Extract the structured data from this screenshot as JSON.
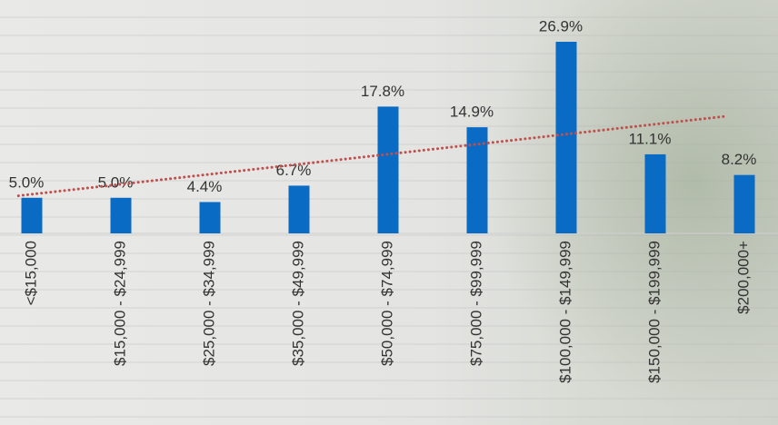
{
  "chart_data": {
    "type": "bar",
    "categories": [
      "<$15,000",
      "$15,000 - $24,999",
      "$25,000 - $34,999",
      "$35,000 - $49,999",
      "$50,000 - $74,999",
      "$75,000 - $99,999",
      "$100,000 - $149,999",
      "$150,000 - $199,999",
      "$200,000+"
    ],
    "values": [
      5.0,
      5.0,
      4.4,
      6.7,
      17.8,
      14.9,
      26.9,
      11.1,
      8.2
    ],
    "value_labels": [
      "5.0%",
      "5.0%",
      "4.4%",
      "6.7%",
      "17.8%",
      "14.9%",
      "26.9%",
      "11.1%",
      "8.2%"
    ],
    "color": "#0a6bc4",
    "trendline": {
      "type": "linear",
      "color": "#c0504d"
    }
  }
}
